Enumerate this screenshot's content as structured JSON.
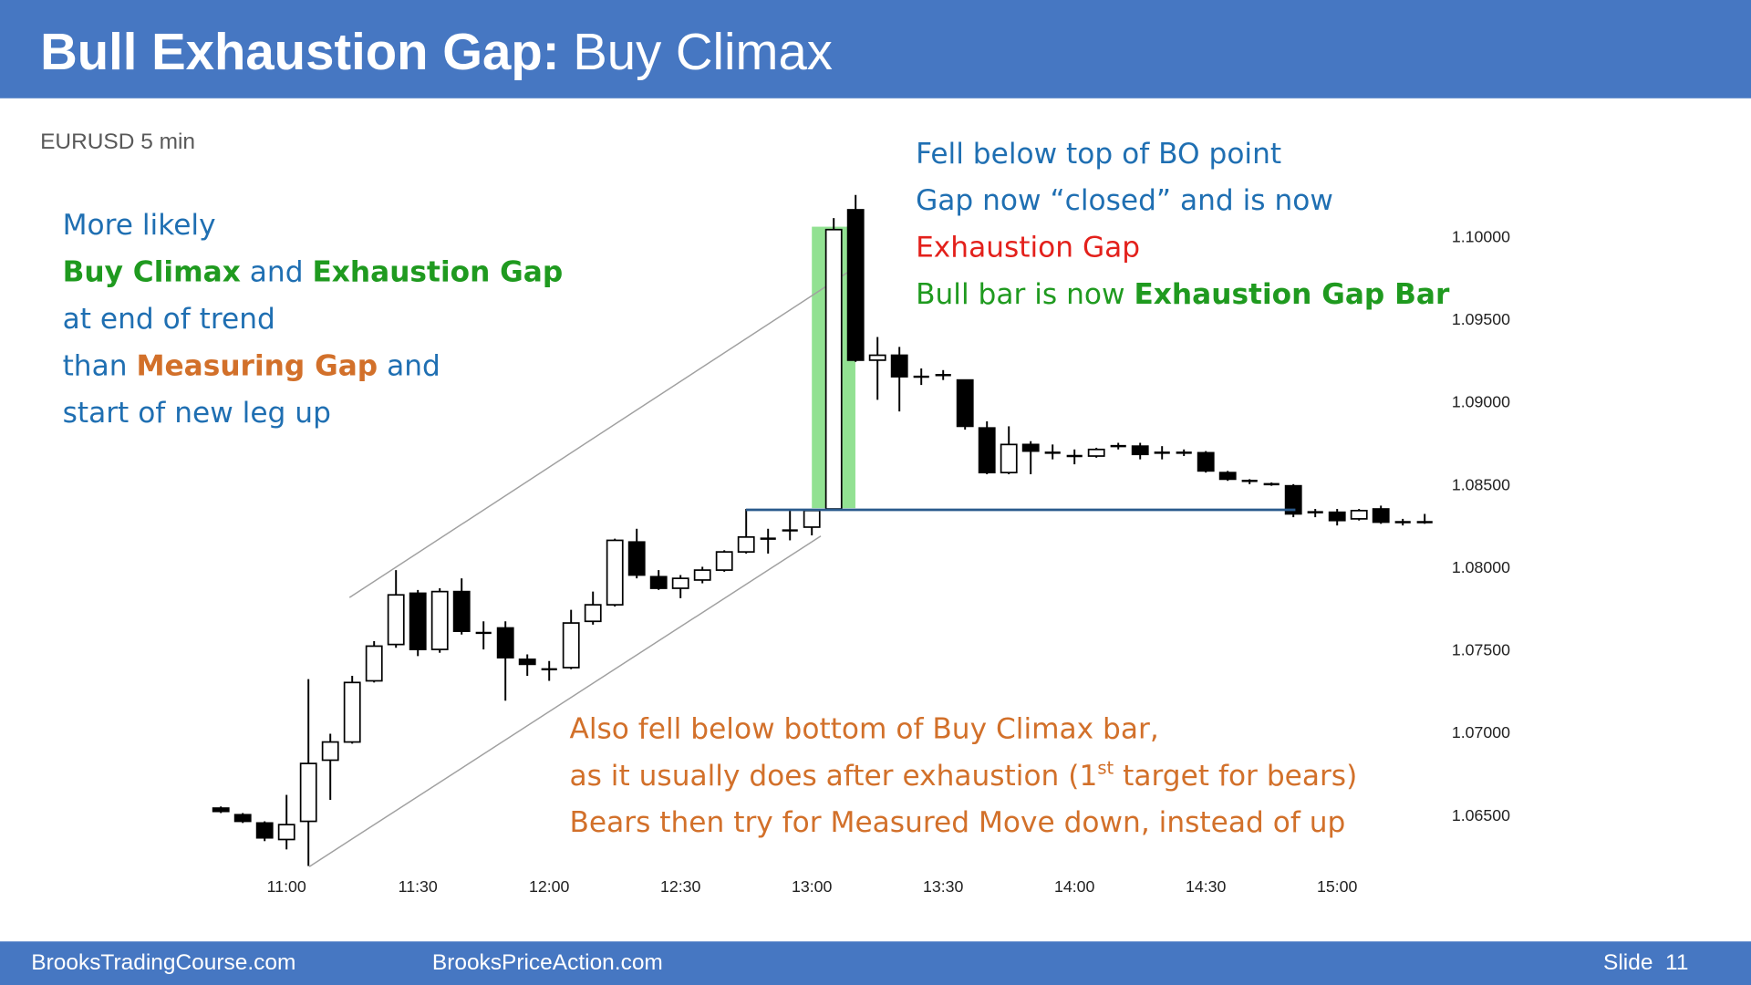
{
  "header": {
    "title_bold": "Bull Exhaustion Gap:",
    "title_rest": "Buy Climax"
  },
  "annotations": {
    "left": [
      [
        "More likely"
      ],
      [
        "Buy Climax",
        " and ",
        "Exhaustion Gap"
      ],
      [
        "at end of trend"
      ],
      [
        "than ",
        "Measuring Gap",
        " and"
      ],
      [
        "start of new leg up"
      ]
    ],
    "top_right": [
      [
        "Fell below top of BO point"
      ],
      [
        "Gap now “closed” and is now"
      ],
      [
        "Exhaustion Gap"
      ],
      [
        "Bull bar is now ",
        "Exhaustion Gap Bar"
      ]
    ],
    "bottom": [
      [
        "Also fell below bottom of Buy Climax bar,"
      ],
      [
        "as it usually does after exhaustion (1",
        "st",
        " target for bears)"
      ],
      [
        "Bears then try for Measured Move down, instead of up"
      ]
    ]
  },
  "footer": {
    "left": "BrooksTradingCourse.com",
    "center": "BrooksPriceAction.com",
    "slide": "Slide  11"
  },
  "chart_data": {
    "type": "candlestick",
    "subtitle": "EURUSD 5 min",
    "categories": [
      null,
      null,
      null,
      "11:00",
      null,
      null,
      null,
      null,
      null,
      "11:30",
      null,
      null,
      null,
      null,
      null,
      "12:00",
      null,
      null,
      null,
      null,
      null,
      "12:30",
      null,
      null,
      null,
      null,
      null,
      "13:00",
      null,
      null,
      null,
      null,
      null,
      "13:30",
      null,
      null,
      null,
      null,
      null,
      "14:00",
      null,
      null,
      null,
      null,
      null,
      "14:30",
      null,
      null,
      null,
      null,
      null,
      "15:00",
      null,
      null,
      null,
      null
    ],
    "open": [
      1.0655,
      1.0651,
      1.0646,
      1.0636,
      1.0647,
      1.0684,
      1.0695,
      1.0732,
      1.0754,
      1.0785,
      1.0751,
      1.0786,
      1.0761,
      1.0764,
      1.0745,
      1.0739,
      1.074,
      1.0768,
      1.0778,
      1.0816,
      1.0795,
      1.0788,
      1.0793,
      1.0799,
      1.081,
      1.0818,
      1.0823,
      1.0825,
      1.0836,
      1.1017,
      1.0926,
      1.0929,
      1.0916,
      1.0917,
      1.0914,
      1.0885,
      1.0858,
      1.0875,
      1.087,
      1.0868,
      1.0868,
      1.0874,
      1.0874,
      1.087,
      1.087,
      1.087,
      1.0858,
      1.0853,
      1.0851,
      1.085,
      1.0834,
      1.0834,
      1.083,
      1.0836,
      1.0828,
      1.0828
    ],
    "high": [
      1.0656,
      1.0652,
      1.0647,
      1.0663,
      1.0733,
      1.07,
      1.0735,
      1.0756,
      1.0799,
      1.0787,
      1.0788,
      1.0794,
      1.0768,
      1.0768,
      1.0748,
      1.0744,
      1.0775,
      1.0786,
      1.0818,
      1.0824,
      1.0799,
      1.0796,
      1.0801,
      1.0811,
      1.0836,
      1.0824,
      1.0836,
      1.0836,
      1.1012,
      1.1026,
      1.094,
      1.0934,
      1.0921,
      1.092,
      1.0914,
      1.0889,
      1.0886,
      1.0877,
      1.0875,
      1.0872,
      1.0873,
      1.0876,
      1.0876,
      1.0874,
      1.0872,
      1.0871,
      1.0859,
      1.0854,
      1.0852,
      1.0851,
      1.0836,
      1.0836,
      1.0836,
      1.0838,
      1.083,
      1.0833
    ],
    "low": [
      1.0652,
      1.0646,
      1.0635,
      1.063,
      1.062,
      1.066,
      1.0694,
      1.0731,
      1.0752,
      1.0747,
      1.0749,
      1.076,
      1.0751,
      1.072,
      1.0735,
      1.0732,
      1.0739,
      1.0766,
      1.0777,
      1.0794,
      1.0787,
      1.0782,
      1.0791,
      1.0798,
      1.0809,
      1.0809,
      1.0817,
      1.082,
      1.0835,
      1.0925,
      1.0902,
      1.0895,
      1.0911,
      1.0914,
      1.0884,
      1.0857,
      1.0857,
      1.0857,
      1.0866,
      1.0863,
      1.0867,
      1.0872,
      1.0866,
      1.0866,
      1.0868,
      1.0858,
      1.0853,
      1.0851,
      1.085,
      1.0831,
      1.0831,
      1.0826,
      1.0829,
      1.0827,
      1.0826,
      1.0827
    ],
    "close": [
      1.0653,
      1.0647,
      1.0637,
      1.0645,
      1.0682,
      1.0695,
      1.0731,
      1.0753,
      1.0784,
      1.0751,
      1.0786,
      1.0762,
      1.0761,
      1.0746,
      1.0742,
      1.0739,
      1.0767,
      1.0778,
      1.0817,
      1.0796,
      1.0788,
      1.0794,
      1.0799,
      1.081,
      1.0819,
      1.0818,
      1.0823,
      1.0835,
      1.1005,
      1.0926,
      1.0929,
      1.0916,
      1.0916,
      1.0917,
      1.0886,
      1.0858,
      1.0875,
      1.0871,
      1.087,
      1.0868,
      1.0872,
      1.0874,
      1.0869,
      1.087,
      1.087,
      1.0859,
      1.0854,
      1.0853,
      1.0851,
      1.0833,
      1.0834,
      1.0829,
      1.0835,
      1.0828,
      1.0828,
      1.0828
    ],
    "up_color": "#ffffff",
    "down_color": "#000000",
    "ylim": [
      1.0615,
      1.1035
    ],
    "yticks": [
      {
        "value": 1.065,
        "label": "1.06500"
      },
      {
        "value": 1.07,
        "label": "1.07000"
      },
      {
        "value": 1.075,
        "label": "1.07500"
      },
      {
        "value": 1.08,
        "label": "1.08000"
      },
      {
        "value": 1.085,
        "label": "1.08500"
      },
      {
        "value": 1.09,
        "label": "1.09000"
      },
      {
        "value": 1.095,
        "label": "1.09500"
      },
      {
        "value": 1.1,
        "label": "1.10000"
      }
    ],
    "grid": false
  }
}
